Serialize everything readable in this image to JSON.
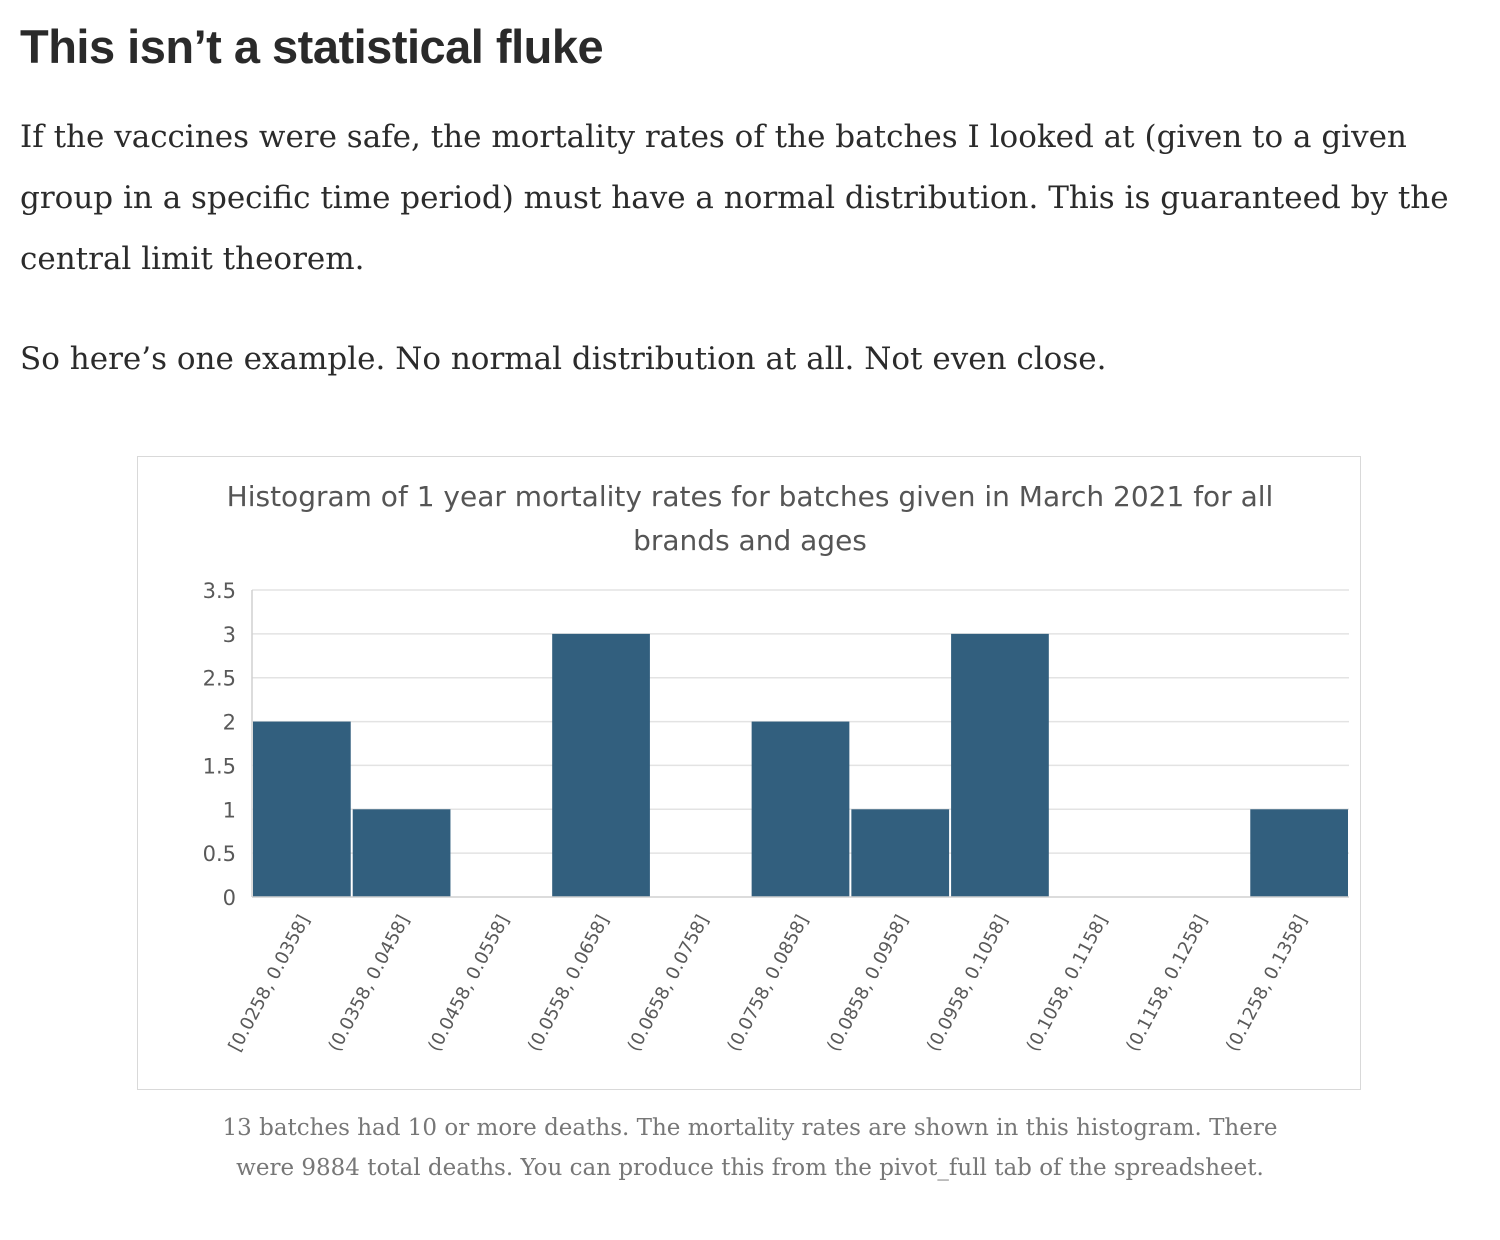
{
  "article": {
    "heading": "This isn’t a statistical fluke",
    "paragraphs": [
      "If the vaccines were safe, the mortality rates of the batches I looked at (given to a given group in a specific time period) must have a normal distribution. This is guaranteed by the central limit theorem.",
      "So here’s one example. No normal distribution at all. Not even close."
    ],
    "caption": "13 batches had 10 or more deaths. The mortality rates are shown in this histogram. There were 9884 total deaths. You can produce this from the pivot_full tab of the spreadsheet."
  },
  "chart_data": {
    "type": "bar",
    "title": "Histogram of 1 year mortality rates for batches given in March 2021 for all brands and ages",
    "xlabel": "",
    "ylabel": "",
    "categories": [
      "[0.0258, 0.0358]",
      "(0.0358, 0.0458]",
      "(0.0458, 0.0558]",
      "(0.0558, 0.0658]",
      "(0.0658, 0.0758]",
      "(0.0758, 0.0858]",
      "(0.0858, 0.0958]",
      "(0.0958, 0.1058]",
      "(0.1058, 0.1158]",
      "(0.1158, 0.1258]",
      "(0.1258, 0.1358]"
    ],
    "values": [
      2,
      1,
      0,
      3,
      0,
      2,
      1,
      3,
      0,
      0,
      1
    ],
    "ylim": [
      0,
      3.5
    ],
    "yticks": [
      "0",
      "0.5",
      "1",
      "1.5",
      "2",
      "2.5",
      "3",
      "3.5"
    ],
    "grid": true,
    "legend": "none",
    "bar_color": "#325f7e",
    "gridline_color": "#e3e3e3",
    "axis_color": "#d0d0d0",
    "tick_label_color": "#595959"
  }
}
